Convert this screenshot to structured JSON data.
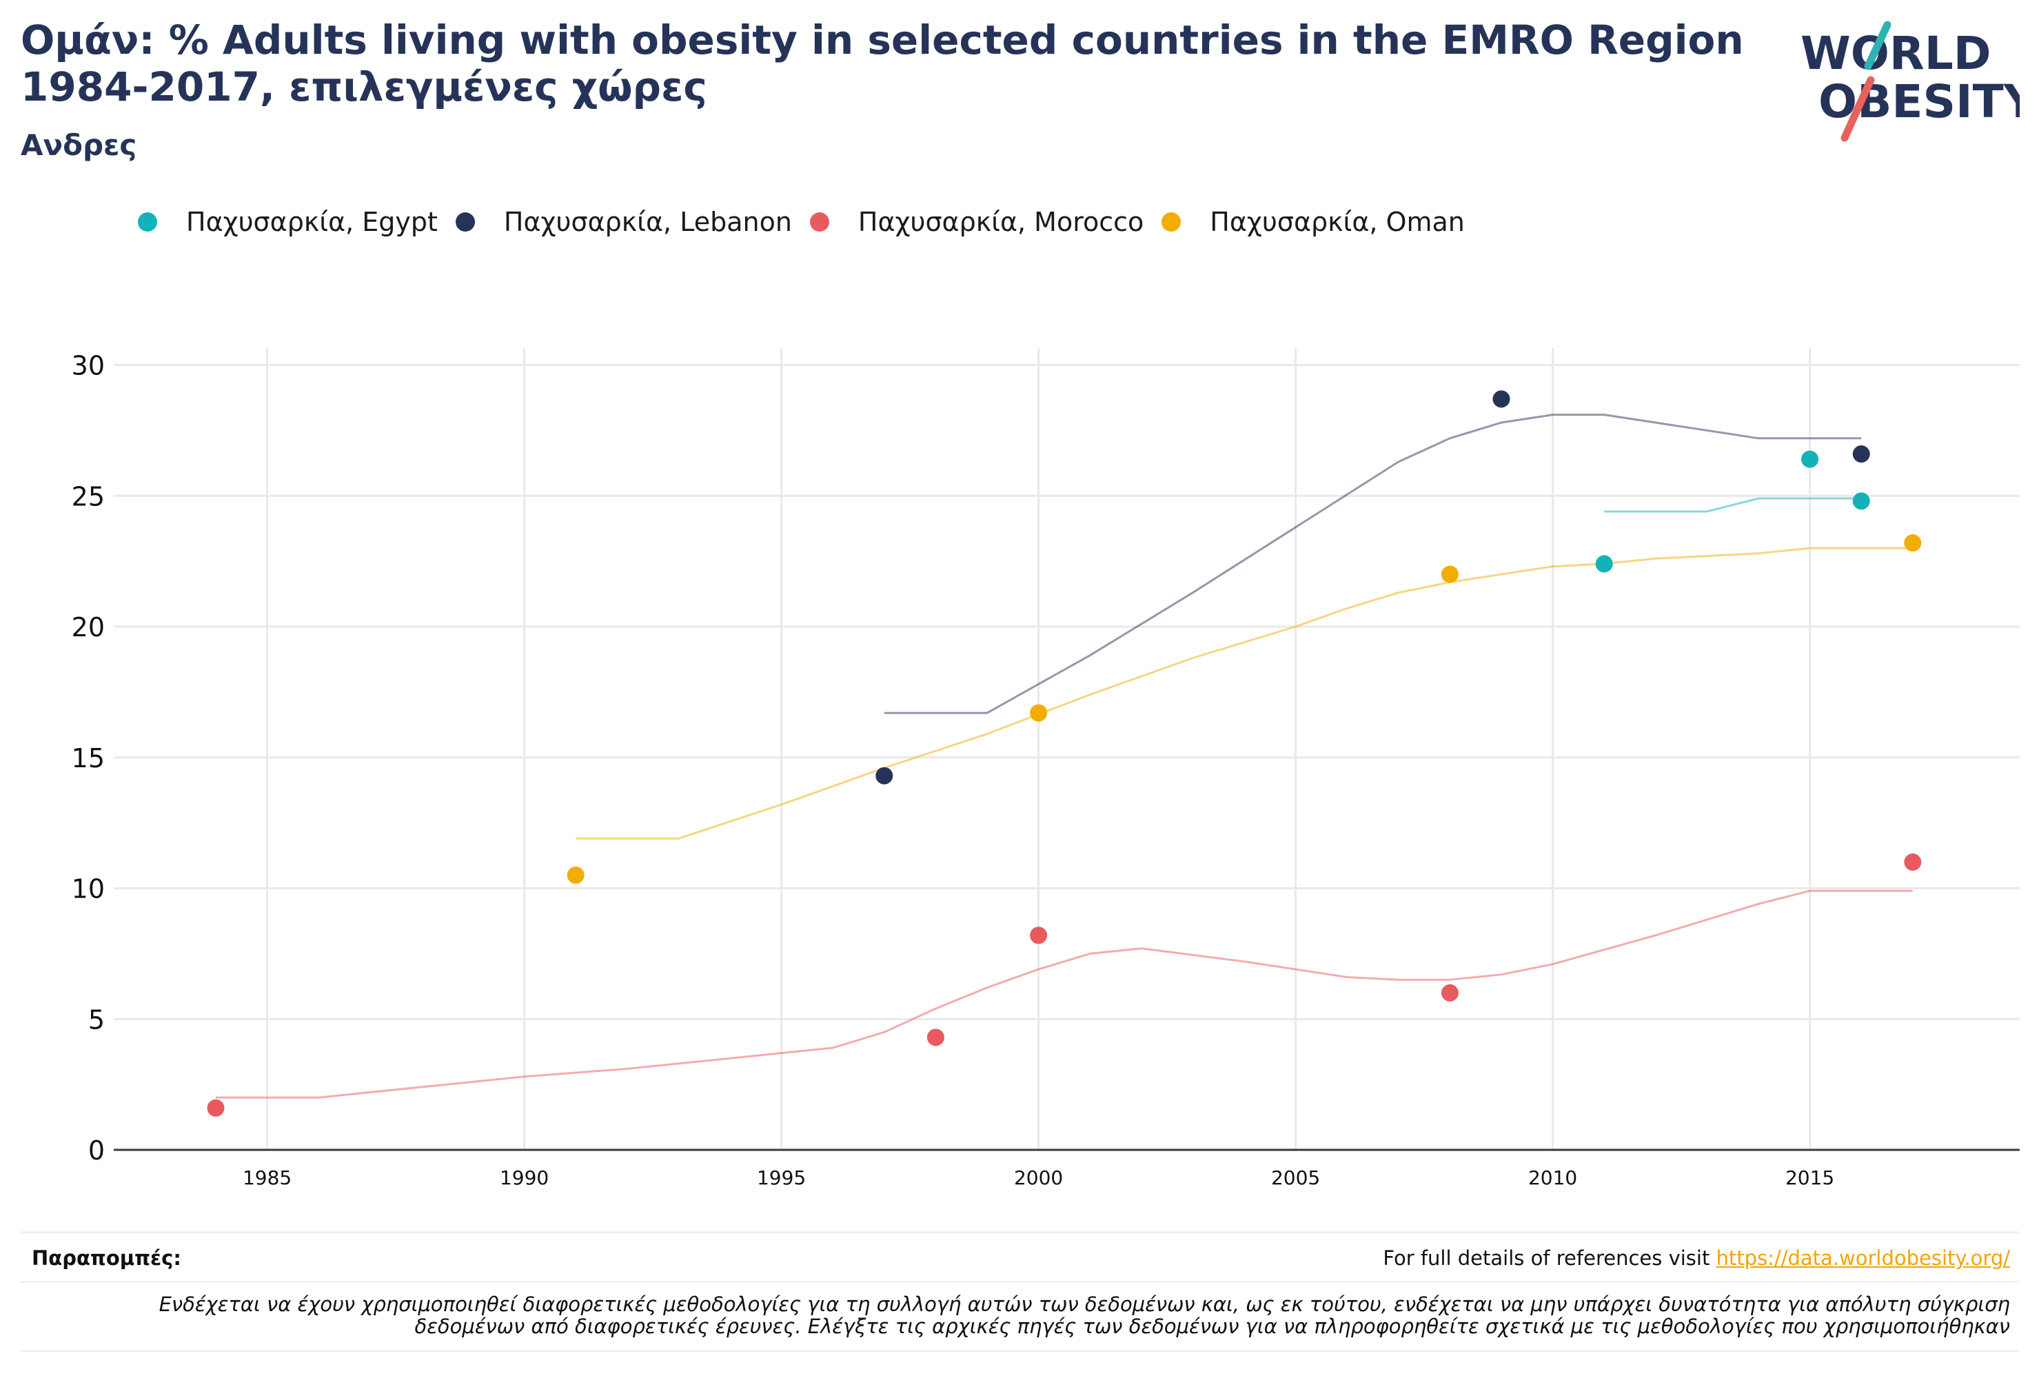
{
  "header": {
    "title": "Ομάν: % Adults living with obesity in selected countries in the EMRO Region 1984-2017, επιλεγμένες χώρες",
    "subtitle": "Ανδρες"
  },
  "logo": {
    "line1": "WORLD",
    "line2": "OBESITY",
    "colors": {
      "text": "#263359",
      "slash_top": "#2db3b3",
      "slash_bottom": "#e8615a"
    }
  },
  "legend": [
    {
      "label": "Παχυσαρκία, Egypt",
      "color": "#12b3b8"
    },
    {
      "label": "Παχυσαρκία, Lebanon",
      "color": "#263359"
    },
    {
      "label": "Παχυσαρκία, Morocco",
      "color": "#e85a5f"
    },
    {
      "label": "Παχυσαρκία, Oman",
      "color": "#f2ad00"
    }
  ],
  "chart_data": {
    "type": "scatter",
    "title": "Ομάν: % Adults living with obesity in selected countries in the EMRO Region 1984-2017, επιλεγμένες χώρες",
    "subtitle": "Ανδρες",
    "xlabel": "",
    "ylabel": "",
    "xlim": [
      1980,
      2019
    ],
    "ylim": [
      0,
      31
    ],
    "xticks": [
      1985,
      1990,
      1995,
      2000,
      2005,
      2010,
      2015
    ],
    "yticks": [
      0,
      5,
      10,
      15,
      20,
      25,
      30
    ],
    "grid": true,
    "legend_position": "top-left",
    "series": [
      {
        "name": "Παχυσαρκία, Egypt",
        "color": "#12b3b8",
        "points": [
          [
            2011,
            22.4
          ],
          [
            2015,
            26.4
          ],
          [
            2016,
            24.8
          ]
        ],
        "trend": [
          [
            2011,
            24.4
          ],
          [
            2013,
            24.4
          ],
          [
            2014,
            24.9
          ],
          [
            2016,
            24.9
          ]
        ]
      },
      {
        "name": "Παχυσαρκία, Lebanon",
        "color": "#263359",
        "points": [
          [
            1997,
            14.3
          ],
          [
            2009,
            28.7
          ],
          [
            2016,
            26.6
          ]
        ],
        "trend": [
          [
            1997,
            16.7
          ],
          [
            1999,
            16.7
          ],
          [
            2001,
            18.9
          ],
          [
            2003,
            21.3
          ],
          [
            2005,
            23.8
          ],
          [
            2007,
            26.3
          ],
          [
            2008,
            27.2
          ],
          [
            2009,
            27.8
          ],
          [
            2010,
            28.1
          ],
          [
            2011,
            28.1
          ],
          [
            2012,
            27.8
          ],
          [
            2014,
            27.2
          ],
          [
            2016,
            27.2
          ]
        ]
      },
      {
        "name": "Παχυσαρκία, Morocco",
        "color": "#e85a5f",
        "points": [
          [
            1984,
            1.6
          ],
          [
            1998,
            4.3
          ],
          [
            2000,
            8.2
          ],
          [
            2008,
            6.0
          ],
          [
            2017,
            11.0
          ]
        ],
        "trend": [
          [
            1984,
            2.0
          ],
          [
            1986,
            2.0
          ],
          [
            1988,
            2.4
          ],
          [
            1990,
            2.8
          ],
          [
            1992,
            3.1
          ],
          [
            1994,
            3.5
          ],
          [
            1996,
            3.9
          ],
          [
            1997,
            4.5
          ],
          [
            1998,
            5.4
          ],
          [
            1999,
            6.2
          ],
          [
            2000,
            6.9
          ],
          [
            2001,
            7.5
          ],
          [
            2002,
            7.7
          ],
          [
            2004,
            7.2
          ],
          [
            2006,
            6.6
          ],
          [
            2007,
            6.5
          ],
          [
            2008,
            6.5
          ],
          [
            2009,
            6.7
          ],
          [
            2010,
            7.1
          ],
          [
            2012,
            8.2
          ],
          [
            2014,
            9.4
          ],
          [
            2015,
            9.9
          ],
          [
            2017,
            9.9
          ]
        ]
      },
      {
        "name": "Παχυσαρκία, Oman",
        "color": "#f2ad00",
        "points": [
          [
            1991,
            10.5
          ],
          [
            2000,
            16.7
          ],
          [
            2008,
            22.0
          ],
          [
            2017,
            23.2
          ]
        ],
        "trend": [
          [
            1991,
            11.9
          ],
          [
            1993,
            11.9
          ],
          [
            1995,
            13.2
          ],
          [
            1997,
            14.6
          ],
          [
            1999,
            15.9
          ],
          [
            2001,
            17.4
          ],
          [
            2003,
            18.8
          ],
          [
            2005,
            20.0
          ],
          [
            2006,
            20.7
          ],
          [
            2007,
            21.3
          ],
          [
            2008,
            21.7
          ],
          [
            2009,
            22.0
          ],
          [
            2010,
            22.3
          ],
          [
            2011,
            22.4
          ],
          [
            2012,
            22.6
          ],
          [
            2014,
            22.8
          ],
          [
            2015,
            23.0
          ],
          [
            2017,
            23.0
          ]
        ]
      }
    ]
  },
  "footer": {
    "refs_label": "Παραπομπές:",
    "refs_text": "For full details of references visit",
    "refs_link": "https://data.worldobesity.org/",
    "disclaimer_line1": "Ενδέχεται να έχουν χρησιμοποιηθεί διαφορετικές μεθοδολογίες για τη συλλογή αυτών των δεδομένων και, ως εκ τούτου, ενδέχεται να μην υπάρχει δυνατότητα για απόλυτη σύγκριση",
    "disclaimer_line2": "δεδομένων από διαφορετικές έρευνες. Ελέγξτε τις αρχικές πηγές των δεδομένων για να πληροφορηθείτε σχετικά με τις μεθοδολογίες που χρησιμοποιήθηκαν"
  }
}
